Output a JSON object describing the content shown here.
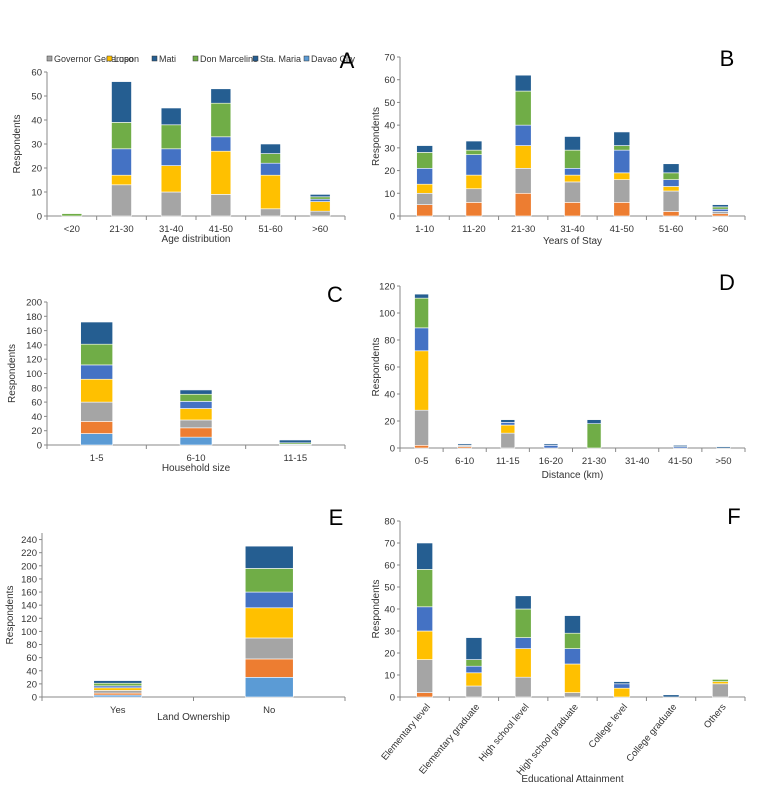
{
  "legend": {
    "entries": [
      "Governor Generoso",
      "Lupon",
      "Mati",
      "Don Marcelino",
      "Sta. Maria",
      "Davao City"
    ]
  },
  "colors": [
    "#5B9BD5",
    "#ED7D31",
    "#A5A5A5",
    "#FFC000",
    "#4472C4",
    "#70AD47",
    "#255E91"
  ],
  "chart_data": [
    {
      "panel": "A",
      "type": "bar",
      "stacked": true,
      "xlabel": "Age distribution",
      "ylabel": "Respondents",
      "ylim": [
        0,
        60
      ],
      "yticks": [
        0,
        10,
        20,
        30,
        40,
        50,
        60
      ],
      "categories": [
        "<20",
        "21-30",
        "31-40",
        "41-50",
        "51-60",
        ">60"
      ],
      "series": [
        {
          "name": "",
          "values": [
            0,
            0,
            0,
            0,
            0,
            0
          ]
        },
        {
          "name": "",
          "values": [
            0,
            0,
            0,
            0,
            0,
            0
          ]
        },
        {
          "name": "",
          "values": [
            0,
            13,
            10,
            9,
            3,
            2
          ]
        },
        {
          "name": "",
          "values": [
            0,
            4,
            11,
            18,
            14,
            4
          ]
        },
        {
          "name": "",
          "values": [
            0,
            11,
            7,
            6,
            5,
            1
          ]
        },
        {
          "name": "",
          "values": [
            1,
            11,
            10,
            14,
            4,
            1
          ]
        },
        {
          "name": "",
          "values": [
            0,
            17,
            7,
            6,
            4,
            1
          ]
        }
      ]
    },
    {
      "panel": "B",
      "type": "bar",
      "stacked": true,
      "xlabel": "Years of Stay",
      "ylabel": "Respondents",
      "ylim": [
        0,
        70
      ],
      "yticks": [
        0,
        10,
        20,
        30,
        40,
        50,
        60,
        70
      ],
      "categories": [
        "1-10",
        "11-20",
        "21-30",
        "31-40",
        "41-50",
        "51-60",
        ">60"
      ],
      "series": [
        {
          "name": "",
          "values": [
            0,
            0,
            0,
            0,
            0,
            0,
            0
          ]
        },
        {
          "name": "",
          "values": [
            5,
            6,
            10,
            6,
            6,
            2,
            1
          ]
        },
        {
          "name": "",
          "values": [
            5,
            6,
            11,
            9,
            10,
            9,
            1
          ]
        },
        {
          "name": "",
          "values": [
            4,
            6,
            10,
            3,
            3,
            2,
            0
          ]
        },
        {
          "name": "",
          "values": [
            7,
            9,
            9,
            3,
            10,
            3,
            1
          ]
        },
        {
          "name": "",
          "values": [
            7,
            2,
            15,
            8,
            2,
            3,
            1
          ]
        },
        {
          "name": "",
          "values": [
            3,
            4,
            7,
            6,
            6,
            4,
            1
          ]
        }
      ]
    },
    {
      "panel": "C",
      "type": "bar",
      "stacked": true,
      "xlabel": "Household size",
      "ylabel": "Respondents",
      "ylim": [
        0,
        200
      ],
      "yticks": [
        0,
        20,
        40,
        60,
        80,
        100,
        120,
        140,
        160,
        180,
        200
      ],
      "categories": [
        "1-5",
        "6-10",
        "11-15"
      ],
      "series": [
        {
          "name": "",
          "values": [
            16,
            11,
            0
          ]
        },
        {
          "name": "",
          "values": [
            17,
            13,
            0
          ]
        },
        {
          "name": "",
          "values": [
            27,
            11,
            0
          ]
        },
        {
          "name": "",
          "values": [
            32,
            16,
            0
          ]
        },
        {
          "name": "",
          "values": [
            20,
            10,
            1
          ]
        },
        {
          "name": "",
          "values": [
            29,
            10,
            2
          ]
        },
        {
          "name": "",
          "values": [
            31,
            6,
            4
          ]
        }
      ]
    },
    {
      "panel": "D",
      "type": "bar",
      "stacked": true,
      "xlabel": "Distance (km)",
      "ylabel": "Respondents",
      "ylim": [
        0,
        120
      ],
      "yticks": [
        0,
        20,
        40,
        60,
        80,
        100,
        120
      ],
      "categories": [
        "0-5",
        "6-10",
        "11-15",
        "16-20",
        "21-30",
        "31-40",
        "41-50",
        ">50"
      ],
      "series": [
        {
          "name": "",
          "values": [
            0,
            0,
            0,
            0,
            0,
            0,
            0,
            0
          ]
        },
        {
          "name": "",
          "values": [
            2,
            1,
            0,
            0,
            0,
            0,
            0,
            0
          ]
        },
        {
          "name": "",
          "values": [
            26,
            1,
            11,
            0,
            0,
            0,
            0,
            0
          ]
        },
        {
          "name": "",
          "values": [
            44,
            0,
            6,
            0,
            0,
            0,
            0,
            0
          ]
        },
        {
          "name": "",
          "values": [
            17,
            0,
            2,
            2,
            0,
            0,
            1,
            0
          ]
        },
        {
          "name": "",
          "values": [
            22,
            0,
            0,
            0,
            18,
            0,
            0,
            0
          ]
        },
        {
          "name": "",
          "values": [
            3,
            1,
            2,
            1,
            3,
            0,
            1,
            1
          ]
        }
      ]
    },
    {
      "panel": "E",
      "type": "bar",
      "stacked": true,
      "xlabel": "Land Ownership",
      "ylabel": "Respondents",
      "ylim": [
        0,
        250
      ],
      "yticks": [
        0,
        20,
        40,
        60,
        80,
        100,
        120,
        140,
        160,
        180,
        200,
        220,
        240
      ],
      "categories": [
        "Yes",
        "No"
      ],
      "series": [
        {
          "name": "",
          "values": [
            3,
            30
          ]
        },
        {
          "name": "",
          "values": [
            3,
            28
          ]
        },
        {
          "name": "",
          "values": [
            4,
            32
          ]
        },
        {
          "name": "",
          "values": [
            4,
            46
          ]
        },
        {
          "name": "",
          "values": [
            3,
            24
          ]
        },
        {
          "name": "",
          "values": [
            4,
            36
          ]
        },
        {
          "name": "",
          "values": [
            4,
            34
          ]
        }
      ]
    },
    {
      "panel": "F",
      "type": "bar",
      "stacked": true,
      "xlabel": "Educational Attainment",
      "ylabel": "Respondents",
      "ylim": [
        0,
        80
      ],
      "yticks": [
        0,
        10,
        20,
        30,
        40,
        50,
        60,
        70,
        80
      ],
      "categories": [
        "Elementary level",
        "Elementary graduate",
        "High school level",
        "High school graduate",
        "College level",
        "College graduate",
        "Others"
      ],
      "series": [
        {
          "name": "",
          "values": [
            0,
            0,
            0,
            0,
            0,
            0,
            0
          ]
        },
        {
          "name": "",
          "values": [
            2,
            0,
            0,
            0,
            0,
            0,
            0
          ]
        },
        {
          "name": "",
          "values": [
            15,
            5,
            9,
            2,
            0,
            0,
            6
          ]
        },
        {
          "name": "",
          "values": [
            13,
            6,
            13,
            13,
            4,
            0,
            1
          ]
        },
        {
          "name": "",
          "values": [
            11,
            3,
            5,
            7,
            2,
            0,
            0
          ]
        },
        {
          "name": "",
          "values": [
            17,
            3,
            13,
            7,
            0,
            0,
            1
          ]
        },
        {
          "name": "",
          "values": [
            12,
            10,
            6,
            8,
            1,
            1,
            0
          ]
        }
      ]
    }
  ]
}
